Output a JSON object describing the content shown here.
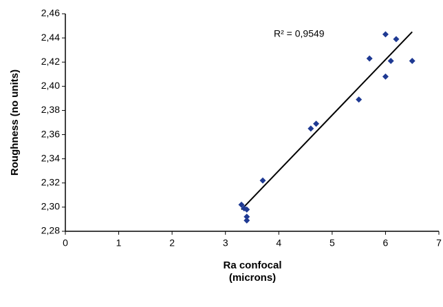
{
  "chart_data": {
    "type": "scatter",
    "x_label": [
      "Ra confocal",
      "(microns)"
    ],
    "y_label": "Roughness (no units)",
    "annotation": "R² = 0,9549",
    "series": [
      {
        "color": "#1f3a93",
        "x": [
          3.3,
          3.35,
          3.4,
          3.4,
          3.4,
          3.7,
          4.6,
          4.7,
          5.5,
          5.7,
          6.0,
          6.0,
          6.1,
          6.2,
          6.5
        ],
        "values": [
          2.302,
          2.299,
          2.298,
          2.292,
          2.289,
          2.322,
          2.365,
          2.369,
          2.389,
          2.423,
          2.443,
          2.408,
          2.421,
          2.439,
          2.421
        ]
      }
    ],
    "trendline": {
      "color": "#000000",
      "x": [
        3.3,
        6.5
      ],
      "values": [
        2.298,
        2.445
      ]
    },
    "xlim": [
      0,
      7
    ],
    "xticks": [
      0,
      1,
      2,
      3,
      4,
      5,
      6,
      7
    ],
    "ylim": [
      2.28,
      2.46
    ],
    "yticks": [
      {
        "value": 2.28,
        "label": "2,28"
      },
      {
        "value": 2.3,
        "label": "2,30"
      },
      {
        "value": 2.32,
        "label": "2,32"
      },
      {
        "value": 2.34,
        "label": "2,34"
      },
      {
        "value": 2.36,
        "label": "2,36"
      },
      {
        "value": 2.38,
        "label": "2,38"
      },
      {
        "value": 2.4,
        "label": "2,40"
      },
      {
        "value": 2.42,
        "label": "2,42"
      },
      {
        "value": 2.44,
        "label": "2,44"
      },
      {
        "value": 2.46,
        "label": "2,46"
      }
    ],
    "grid": false
  }
}
